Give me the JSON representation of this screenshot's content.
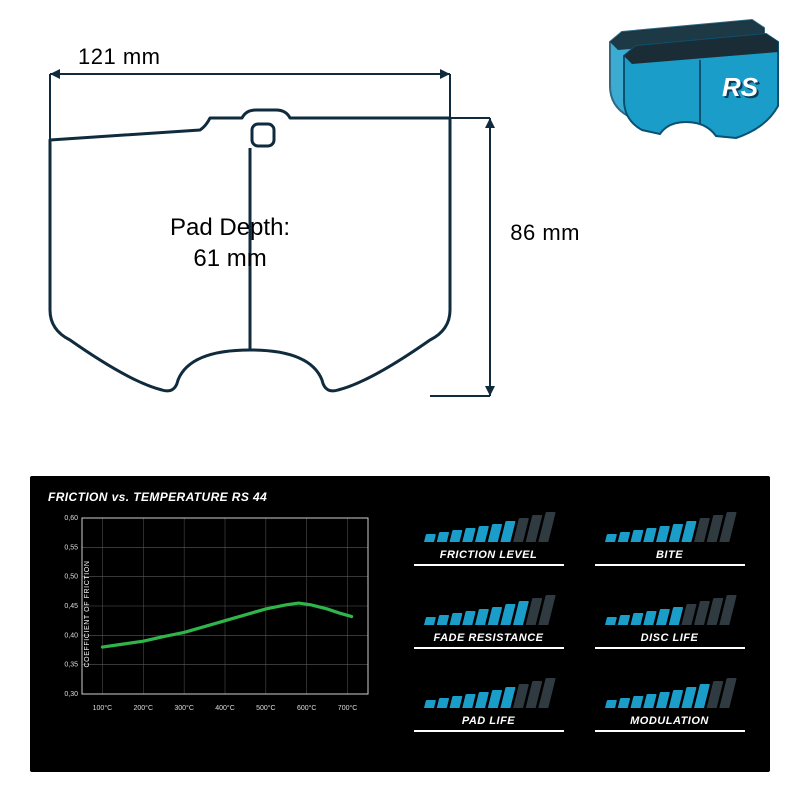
{
  "dimensions": {
    "width_label": "121 mm",
    "height_label": "86 mm",
    "depth_label_line1": "Pad Depth:",
    "depth_label_line2": "61 mm"
  },
  "product": {
    "brand_text": "RS",
    "pad_color": "#1b9dc9",
    "pad_outline": "#0a5070",
    "backing_color": "#1a2c36"
  },
  "drawing": {
    "stroke": "#0f2b3d",
    "stroke_width": 3
  },
  "chart": {
    "title": "FRICTION vs. TEMPERATURE RS 44",
    "y_axis_label": "COEFFICIENT OF FRICTION",
    "x_ticks": [
      "100°C",
      "200°C",
      "300°C",
      "400°C",
      "500°C",
      "600°C",
      "700°C"
    ],
    "y_ticks": [
      "0,30",
      "0,35",
      "0,40",
      "0,45",
      "0,50",
      "0,55",
      "0,60"
    ],
    "y_min": 0.3,
    "y_max": 0.6,
    "grid_color": "#5a5a5a",
    "axis_color": "#cfcfcf",
    "tick_font_size": 7,
    "line_color": "#2fb54a",
    "line_width": 3.2,
    "series": [
      {
        "x": 100,
        "y": 0.38
      },
      {
        "x": 150,
        "y": 0.385
      },
      {
        "x": 200,
        "y": 0.39
      },
      {
        "x": 250,
        "y": 0.398
      },
      {
        "x": 300,
        "y": 0.405
      },
      {
        "x": 350,
        "y": 0.415
      },
      {
        "x": 400,
        "y": 0.425
      },
      {
        "x": 450,
        "y": 0.435
      },
      {
        "x": 500,
        "y": 0.445
      },
      {
        "x": 550,
        "y": 0.452
      },
      {
        "x": 580,
        "y": 0.455
      },
      {
        "x": 610,
        "y": 0.452
      },
      {
        "x": 650,
        "y": 0.445
      },
      {
        "x": 680,
        "y": 0.438
      },
      {
        "x": 710,
        "y": 0.432
      }
    ]
  },
  "ratings": {
    "bar_heights": [
      8,
      10,
      12,
      14,
      16,
      18,
      21,
      24,
      27,
      30
    ],
    "active_color": "#1b9dc9",
    "inactive_color": "#2f3b41",
    "items": [
      {
        "label": "FRICTION LEVEL",
        "score": 7
      },
      {
        "label": "BITE",
        "score": 7
      },
      {
        "label": "FADE RESISTANCE",
        "score": 8
      },
      {
        "label": "DISC LIFE",
        "score": 6
      },
      {
        "label": "PAD LIFE",
        "score": 7
      },
      {
        "label": "MODULATION",
        "score": 8
      }
    ]
  }
}
